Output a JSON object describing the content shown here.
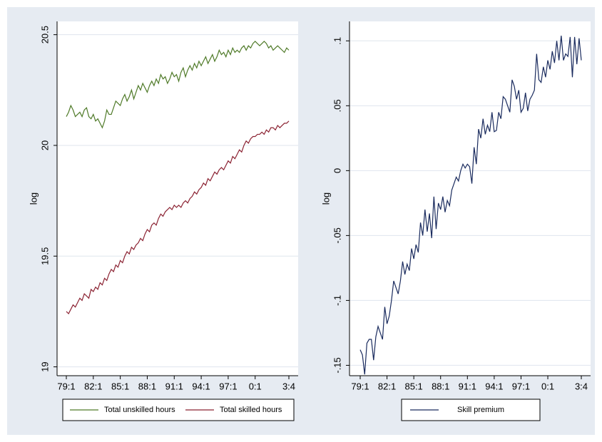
{
  "chart_data": [
    {
      "type": "line",
      "ylabel": "log",
      "grid": true,
      "legend": "bottom",
      "categories": [
        "79:1",
        null,
        null,
        null,
        null,
        null,
        null,
        null,
        null,
        null,
        null,
        null,
        "82:1",
        null,
        null,
        null,
        null,
        null,
        null,
        null,
        null,
        null,
        null,
        null,
        "85:1",
        null,
        null,
        null,
        null,
        null,
        null,
        null,
        null,
        null,
        null,
        null,
        "88:1",
        null,
        null,
        null,
        null,
        null,
        null,
        null,
        null,
        null,
        null,
        null,
        "91:1",
        null,
        null,
        null,
        null,
        null,
        null,
        null,
        null,
        null,
        null,
        null,
        "94:1",
        null,
        null,
        null,
        null,
        null,
        null,
        null,
        null,
        null,
        null,
        null,
        "97:1",
        null,
        null,
        null,
        null,
        null,
        null,
        null,
        null,
        null,
        null,
        null,
        "0:1",
        null,
        null,
        null,
        null,
        null,
        null,
        null,
        null,
        null,
        null,
        null,
        null,
        null,
        null,
        "3:4"
      ],
      "ylim": [
        18.96,
        20.56
      ],
      "yticks": [
        19,
        19.5,
        20,
        20.5
      ],
      "series": [
        {
          "name": "Total unskilled hours",
          "color": "#4f7a28",
          "values": [
            20.13,
            20.15,
            20.18,
            20.16,
            20.13,
            20.14,
            20.15,
            20.13,
            20.16,
            20.17,
            20.13,
            20.12,
            20.14,
            20.11,
            20.12,
            20.1,
            20.08,
            20.11,
            20.16,
            20.14,
            20.14,
            20.17,
            20.2,
            20.19,
            20.18,
            20.21,
            20.23,
            20.2,
            20.22,
            20.25,
            20.21,
            20.24,
            20.27,
            20.25,
            20.28,
            20.26,
            20.24,
            20.27,
            20.29,
            20.27,
            20.3,
            20.28,
            20.32,
            20.3,
            20.31,
            20.28,
            20.3,
            20.33,
            20.31,
            20.32,
            20.29,
            20.33,
            20.35,
            20.31,
            20.34,
            20.36,
            20.34,
            20.37,
            20.35,
            20.38,
            20.36,
            20.38,
            20.4,
            20.37,
            20.39,
            20.41,
            20.38,
            20.4,
            20.43,
            20.41,
            20.42,
            20.4,
            20.43,
            20.41,
            20.44,
            20.42,
            20.43,
            20.42,
            20.44,
            20.45,
            20.43,
            20.45,
            20.44,
            20.46,
            20.47,
            20.46,
            20.45,
            20.46,
            20.47,
            20.46,
            20.44,
            20.45,
            20.43,
            20.44,
            20.45,
            20.44,
            20.43,
            20.42,
            20.44,
            20.43
          ]
        },
        {
          "name": "Total skilled hours",
          "color": "#8b2232",
          "values": [
            19.25,
            19.24,
            19.26,
            19.28,
            19.27,
            19.29,
            19.31,
            19.3,
            19.33,
            19.32,
            19.31,
            19.35,
            19.34,
            19.36,
            19.35,
            19.38,
            19.37,
            19.4,
            19.39,
            19.42,
            19.44,
            19.43,
            19.46,
            19.45,
            19.48,
            19.47,
            19.5,
            19.52,
            19.51,
            19.54,
            19.53,
            19.55,
            19.56,
            19.58,
            19.57,
            19.6,
            19.62,
            19.61,
            19.64,
            19.65,
            19.64,
            19.67,
            19.69,
            19.68,
            19.7,
            19.71,
            19.72,
            19.71,
            19.73,
            19.72,
            19.73,
            19.72,
            19.74,
            19.75,
            19.74,
            19.76,
            19.77,
            19.79,
            19.78,
            19.8,
            19.81,
            19.83,
            19.82,
            19.85,
            19.84,
            19.86,
            19.88,
            19.87,
            19.89,
            19.9,
            19.89,
            19.91,
            19.93,
            19.92,
            19.95,
            19.94,
            19.96,
            19.98,
            19.97,
            20.0,
            20.02,
            20.01,
            20.03,
            20.04,
            20.04,
            20.05,
            20.05,
            20.06,
            20.05,
            20.07,
            20.06,
            20.08,
            20.08,
            20.07,
            20.09,
            20.08,
            20.09,
            20.1,
            20.1,
            20.11
          ]
        }
      ]
    },
    {
      "type": "line",
      "ylabel": "log",
      "grid": true,
      "legend": "bottom",
      "categories": [
        "79:1",
        null,
        null,
        null,
        null,
        null,
        null,
        null,
        null,
        null,
        null,
        null,
        "82:1",
        null,
        null,
        null,
        null,
        null,
        null,
        null,
        null,
        null,
        null,
        null,
        "85:1",
        null,
        null,
        null,
        null,
        null,
        null,
        null,
        null,
        null,
        null,
        null,
        "88:1",
        null,
        null,
        null,
        null,
        null,
        null,
        null,
        null,
        null,
        null,
        null,
        "91:1",
        null,
        null,
        null,
        null,
        null,
        null,
        null,
        null,
        null,
        null,
        null,
        "94:1",
        null,
        null,
        null,
        null,
        null,
        null,
        null,
        null,
        null,
        null,
        null,
        "97:1",
        null,
        null,
        null,
        null,
        null,
        null,
        null,
        null,
        null,
        null,
        null,
        "0:1",
        null,
        null,
        null,
        null,
        null,
        null,
        null,
        null,
        null,
        null,
        null,
        null,
        null,
        null,
        "3:4"
      ],
      "ylim": [
        -0.158,
        0.115
      ],
      "yticks": [
        {
          "value": -0.15,
          "label": "-.15"
        },
        {
          "value": -0.1,
          "label": "-.1"
        },
        {
          "value": -0.05,
          "label": "-.05"
        },
        0,
        {
          "value": 0.05,
          "label": ".05"
        },
        {
          "value": 0.1,
          "label": ".1"
        }
      ],
      "series": [
        {
          "name": "Skill premium",
          "color": "#1a2b5e",
          "values": [
            -0.138,
            -0.142,
            -0.157,
            -0.133,
            -0.13,
            -0.13,
            -0.146,
            -0.128,
            -0.12,
            -0.125,
            -0.13,
            -0.105,
            -0.118,
            -0.112,
            -0.1,
            -0.085,
            -0.09,
            -0.095,
            -0.085,
            -0.07,
            -0.08,
            -0.072,
            -0.077,
            -0.06,
            -0.068,
            -0.057,
            -0.063,
            -0.04,
            -0.05,
            -0.03,
            -0.047,
            -0.033,
            -0.052,
            -0.02,
            -0.045,
            -0.025,
            -0.03,
            -0.02,
            -0.032,
            -0.023,
            -0.027,
            -0.015,
            -0.01,
            -0.005,
            -0.008,
            0.0,
            0.005,
            0.002,
            0.005,
            0.003,
            -0.01,
            0.018,
            0.005,
            0.032,
            0.025,
            0.04,
            0.028,
            0.035,
            0.03,
            0.045,
            0.03,
            0.031,
            0.045,
            0.04,
            0.057,
            0.055,
            0.05,
            0.045,
            0.07,
            0.065,
            0.055,
            0.062,
            0.045,
            0.048,
            0.06,
            0.046,
            0.055,
            0.058,
            0.062,
            0.09,
            0.07,
            0.068,
            0.08,
            0.072,
            0.085,
            0.078,
            0.092,
            0.083,
            0.1,
            0.085,
            0.104,
            0.085,
            0.09,
            0.088,
            0.103,
            0.072,
            0.103,
            0.082,
            0.102,
            0.085
          ]
        }
      ]
    }
  ]
}
